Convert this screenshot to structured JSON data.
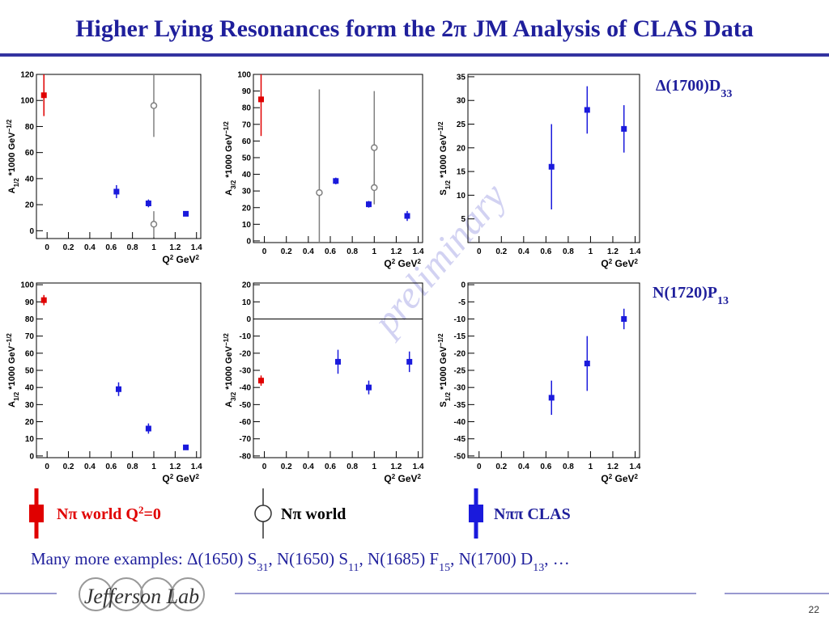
{
  "title": "Higher Lying Resonances form the 2π JM Analysis of CLAS Data",
  "watermark": "preliminary",
  "resonances": [
    [
      {
        "text": "Δ(1700)D"
      },
      {
        "sub": "33"
      }
    ],
    [
      {
        "text": "N(1720)P"
      },
      {
        "sub": "13"
      }
    ]
  ],
  "legend": [
    [
      {
        "text": "Nπ world Q"
      },
      {
        "sup": "2"
      },
      {
        "text": "=0"
      }
    ],
    [
      {
        "text": "Nπ world"
      }
    ],
    [
      {
        "text": "Nππ CLAS"
      }
    ]
  ],
  "note": [
    {
      "text": "Many more examples: Δ(1650) S"
    },
    {
      "sub": "31"
    },
    {
      "text": ", N(1650) S"
    },
    {
      "sub": "11"
    },
    {
      "text": ", N(1685) F"
    },
    {
      "sub": "15"
    },
    {
      "text": ", N(1700) D"
    },
    {
      "sub": "13"
    },
    {
      "text": ", …"
    }
  ],
  "logo": "Jefferson Lab",
  "page": "22",
  "chart_data": [
    {
      "type": "scatter",
      "ylabel": [
        {
          "text": "A"
        },
        {
          "sub": "1/2"
        },
        {
          "text": " *1000 GeV"
        },
        {
          "sup": "−1/2"
        }
      ],
      "xlabel": [
        {
          "text": "Q"
        },
        {
          "sup": "2"
        },
        {
          "text": " GeV"
        },
        {
          "sup": "2"
        }
      ],
      "xlim": [
        -0.1,
        1.44
      ],
      "xticks": [
        0,
        0.2,
        0.4,
        0.6,
        0.8,
        1,
        1.2,
        1.4
      ],
      "ylim": [
        -6,
        120
      ],
      "yticks": [
        0,
        20,
        40,
        60,
        80,
        100,
        120
      ],
      "series": [
        {
          "color": "#e00000",
          "marker": "square",
          "x": [
            -0.03
          ],
          "values": [
            104
          ],
          "errors": [
            16
          ]
        },
        {
          "color": "#808080",
          "marker": "circle-open",
          "x": [
            1.0,
            1.0
          ],
          "values": [
            96,
            5
          ],
          "errors": [
            24,
            10
          ]
        },
        {
          "color": "#1a1adc",
          "marker": "square",
          "x": [
            0.65,
            0.95,
            1.3
          ],
          "values": [
            30,
            21,
            13
          ],
          "errors": [
            5,
            3,
            1
          ]
        }
      ]
    },
    {
      "type": "scatter",
      "ylabel": [
        {
          "text": "A"
        },
        {
          "sub": "3/2"
        },
        {
          "text": " *1000 GeV"
        },
        {
          "sup": "−1/2"
        }
      ],
      "xlabel": [
        {
          "text": "Q"
        },
        {
          "sup": "2"
        },
        {
          "text": " GeV"
        },
        {
          "sup": "2"
        }
      ],
      "xlim": [
        -0.1,
        1.44
      ],
      "xticks": [
        0,
        0.2,
        0.4,
        0.6,
        0.8,
        1,
        1.2,
        1.4
      ],
      "ylim": [
        -1,
        100
      ],
      "yticks": [
        0,
        10,
        20,
        30,
        40,
        50,
        60,
        70,
        80,
        90,
        100
      ],
      "series": [
        {
          "color": "#e00000",
          "marker": "square",
          "x": [
            -0.03
          ],
          "values": [
            85
          ],
          "errors": [
            22
          ]
        },
        {
          "color": "#808080",
          "marker": "circle-open",
          "x": [
            0.5,
            1.0,
            1.0
          ],
          "values": [
            29,
            56,
            32
          ],
          "errors": [
            62,
            34,
            10
          ]
        },
        {
          "color": "#1a1adc",
          "marker": "square",
          "x": [
            0.65,
            0.95,
            1.3
          ],
          "values": [
            36,
            22,
            15
          ],
          "errors": [
            2,
            2,
            3
          ]
        }
      ]
    },
    {
      "type": "scatter",
      "ylabel": [
        {
          "text": "S"
        },
        {
          "sub": "1/2"
        },
        {
          "text": " *1000 GeV"
        },
        {
          "sup": "−1/2"
        }
      ],
      "xlabel": [
        {
          "text": "Q"
        },
        {
          "sup": "2"
        },
        {
          "text": " GeV"
        },
        {
          "sup": "2"
        }
      ],
      "xlim": [
        -0.1,
        1.44
      ],
      "xticks": [
        0,
        0.2,
        0.4,
        0.6,
        0.8,
        1,
        1.2,
        1.4
      ],
      "ylim": [
        0,
        35.5
      ],
      "yticks": [
        5,
        10,
        15,
        20,
        25,
        30,
        35
      ],
      "series": [
        {
          "color": "#1a1adc",
          "marker": "square",
          "x": [
            0.65,
            0.97,
            1.3
          ],
          "values": [
            16,
            28,
            24
          ],
          "errors": [
            9,
            5,
            5
          ]
        }
      ]
    },
    {
      "type": "scatter",
      "ylabel": [
        {
          "text": "A"
        },
        {
          "sub": "1/2"
        },
        {
          "text": " *1000 GeV"
        },
        {
          "sup": "−1/2"
        }
      ],
      "xlabel": [
        {
          "text": "Q"
        },
        {
          "sup": "2"
        },
        {
          "text": " GeV"
        },
        {
          "sup": "2"
        }
      ],
      "xlim": [
        -0.1,
        1.44
      ],
      "xticks": [
        0,
        0.2,
        0.4,
        0.6,
        0.8,
        1,
        1.2,
        1.4
      ],
      "ylim": [
        -1,
        101
      ],
      "yticks": [
        0,
        10,
        20,
        30,
        40,
        50,
        60,
        70,
        80,
        90,
        100
      ],
      "series": [
        {
          "color": "#e00000",
          "marker": "square",
          "x": [
            -0.03
          ],
          "values": [
            91
          ],
          "errors": [
            3
          ]
        },
        {
          "color": "#1a1adc",
          "marker": "square",
          "x": [
            0.67,
            0.95,
            1.3
          ],
          "values": [
            39,
            16,
            5
          ],
          "errors": [
            4,
            3,
            1
          ]
        }
      ]
    },
    {
      "type": "scatter",
      "ylabel": [
        {
          "text": "A"
        },
        {
          "sub": "3/2"
        },
        {
          "text": " *1000 GeV"
        },
        {
          "sup": "−1/2"
        }
      ],
      "xlabel": [
        {
          "text": "Q"
        },
        {
          "sup": "2"
        },
        {
          "text": " GeV"
        },
        {
          "sup": "2"
        }
      ],
      "xlim": [
        -0.1,
        1.44
      ],
      "xticks": [
        0,
        0.2,
        0.4,
        0.6,
        0.8,
        1,
        1.2,
        1.4
      ],
      "ylim": [
        -81,
        21
      ],
      "yticks": [
        -80,
        -70,
        -60,
        -50,
        -40,
        -30,
        -20,
        -10,
        0,
        10,
        20
      ],
      "zero_line": true,
      "series": [
        {
          "color": "#e00000",
          "marker": "square",
          "x": [
            -0.03
          ],
          "values": [
            -36
          ],
          "errors": [
            3
          ]
        },
        {
          "color": "#1a1adc",
          "marker": "square",
          "x": [
            0.67,
            0.95,
            1.32
          ],
          "values": [
            -25,
            -40,
            -25
          ],
          "errors": [
            7,
            4,
            6
          ]
        }
      ]
    },
    {
      "type": "scatter",
      "ylabel": [
        {
          "text": "S"
        },
        {
          "sub": "1/2"
        },
        {
          "text": " *1000 GeV"
        },
        {
          "sup": "−1/2"
        }
      ],
      "xlabel": [
        {
          "text": "Q"
        },
        {
          "sup": "2"
        },
        {
          "text": " GeV"
        },
        {
          "sup": "2"
        }
      ],
      "xlim": [
        -0.1,
        1.44
      ],
      "xticks": [
        0,
        0.2,
        0.4,
        0.6,
        0.8,
        1,
        1.2,
        1.4
      ],
      "ylim": [
        -50.5,
        0.5
      ],
      "yticks": [
        -50,
        -45,
        -40,
        -35,
        -30,
        -25,
        -20,
        -15,
        -10,
        -5,
        0
      ],
      "series": [
        {
          "color": "#1a1adc",
          "marker": "square",
          "x": [
            0.65,
            0.97,
            1.3
          ],
          "values": [
            -33,
            -23,
            -10
          ],
          "errors": [
            5,
            8,
            3
          ]
        }
      ]
    }
  ]
}
